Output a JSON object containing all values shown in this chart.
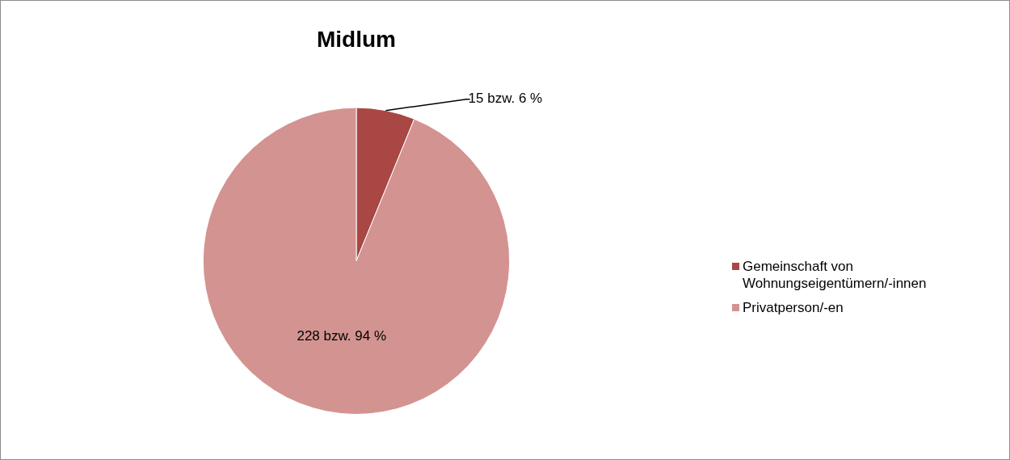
{
  "chart_data": {
    "type": "pie",
    "title": "Midlum",
    "categories": [
      "Gemeinschaft von Wohnungseigentümern/-innen",
      "Privatperson/-en"
    ],
    "values": [
      15,
      228
    ],
    "colors": [
      "#a84743",
      "#d39391"
    ],
    "value_labels": [
      "15 bzw. 6 %",
      "228 bzw. 94 %"
    ],
    "legend": "right"
  }
}
